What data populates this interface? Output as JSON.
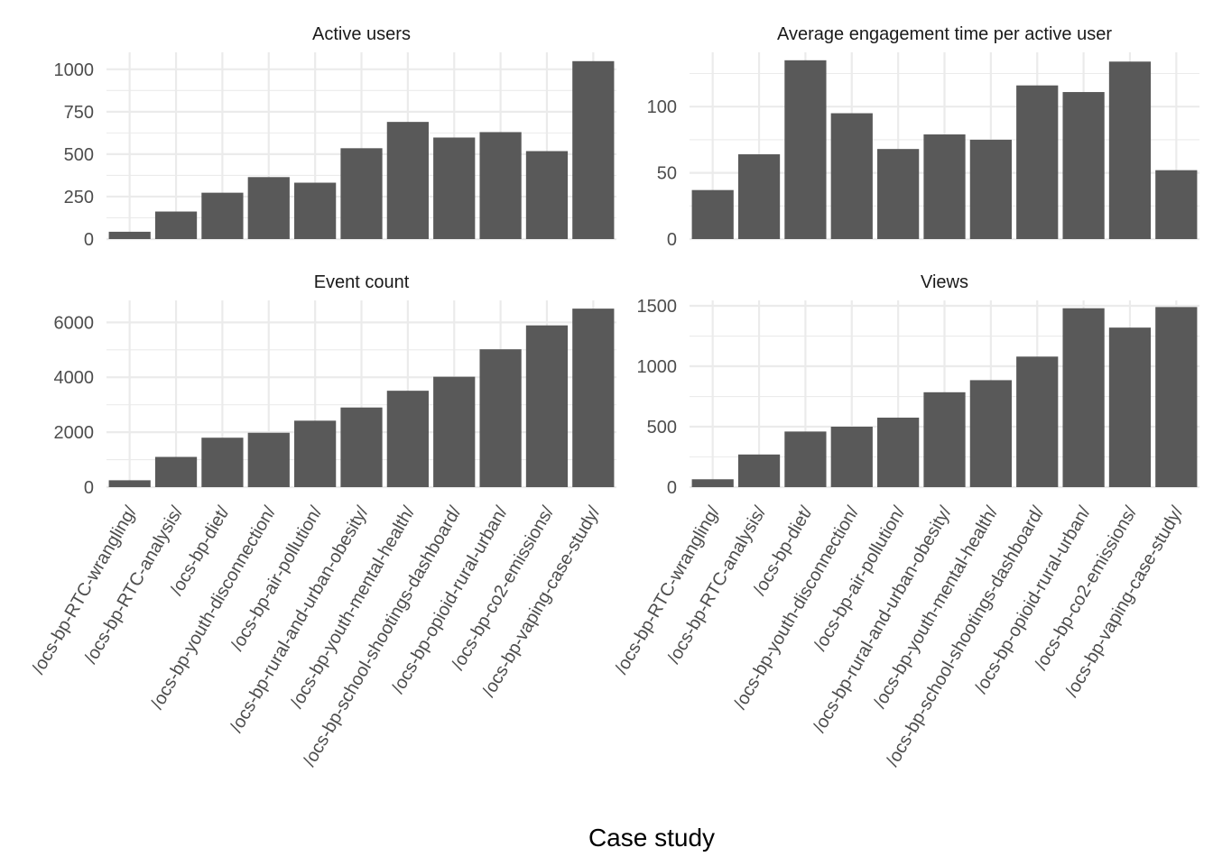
{
  "colors": {
    "bar": "#595959",
    "grid": "#ebebeb",
    "background": "#ffffff"
  },
  "chart_data": {
    "type": "bar",
    "layout": "facet-grid-2x2",
    "xlabel": "Case study",
    "categories": [
      "/ocs-bp-RTC-wrangling/",
      "/ocs-bp-RTC-analysis/",
      "/ocs-bp-diet/",
      "/ocs-bp-youth-disconnection/",
      "/ocs-bp-air-pollution/",
      "/ocs-bp-rural-and-urban-obesity/",
      "/ocs-bp-youth-mental-health/",
      "/ocs-bp-school-shootings-dashboard/",
      "/ocs-bp-opioid-rural-urban/",
      "/ocs-bp-co2-emissions/",
      "/ocs-bp-vaping-case-study/"
    ],
    "grid": true,
    "facets": [
      {
        "title": "Active users",
        "values": [
          43,
          162,
          273,
          365,
          332,
          535,
          690,
          598,
          630,
          518,
          1048
        ],
        "ylim": [
          0,
          1100
        ],
        "yticks": [
          0,
          250,
          500,
          750,
          1000
        ],
        "ytick_labels": [
          "0",
          "250",
          "500",
          "750",
          "1000"
        ]
      },
      {
        "title": "Average engagement time per active user",
        "values": [
          37,
          64,
          135,
          95,
          68,
          79,
          75,
          116,
          111,
          134,
          52
        ],
        "ylim": [
          0,
          141
        ],
        "yticks": [
          0,
          50,
          100
        ],
        "ytick_labels": [
          "0",
          "50",
          "100"
        ]
      },
      {
        "title": "Event count",
        "values": [
          250,
          1100,
          1800,
          1980,
          2420,
          2900,
          3510,
          4020,
          5020,
          5890,
          6500
        ],
        "ylim": [
          0,
          6800
        ],
        "yticks": [
          0,
          2000,
          4000,
          6000
        ],
        "ytick_labels": [
          "0",
          "2000",
          "4000",
          "6000"
        ]
      },
      {
        "title": "Views",
        "values": [
          65,
          270,
          460,
          500,
          575,
          785,
          885,
          1080,
          1480,
          1320,
          1490
        ],
        "ylim": [
          0,
          1545
        ],
        "yticks": [
          0,
          500,
          1000,
          1500
        ],
        "ytick_labels": [
          "0",
          "500",
          "1000",
          "1500"
        ]
      }
    ]
  }
}
